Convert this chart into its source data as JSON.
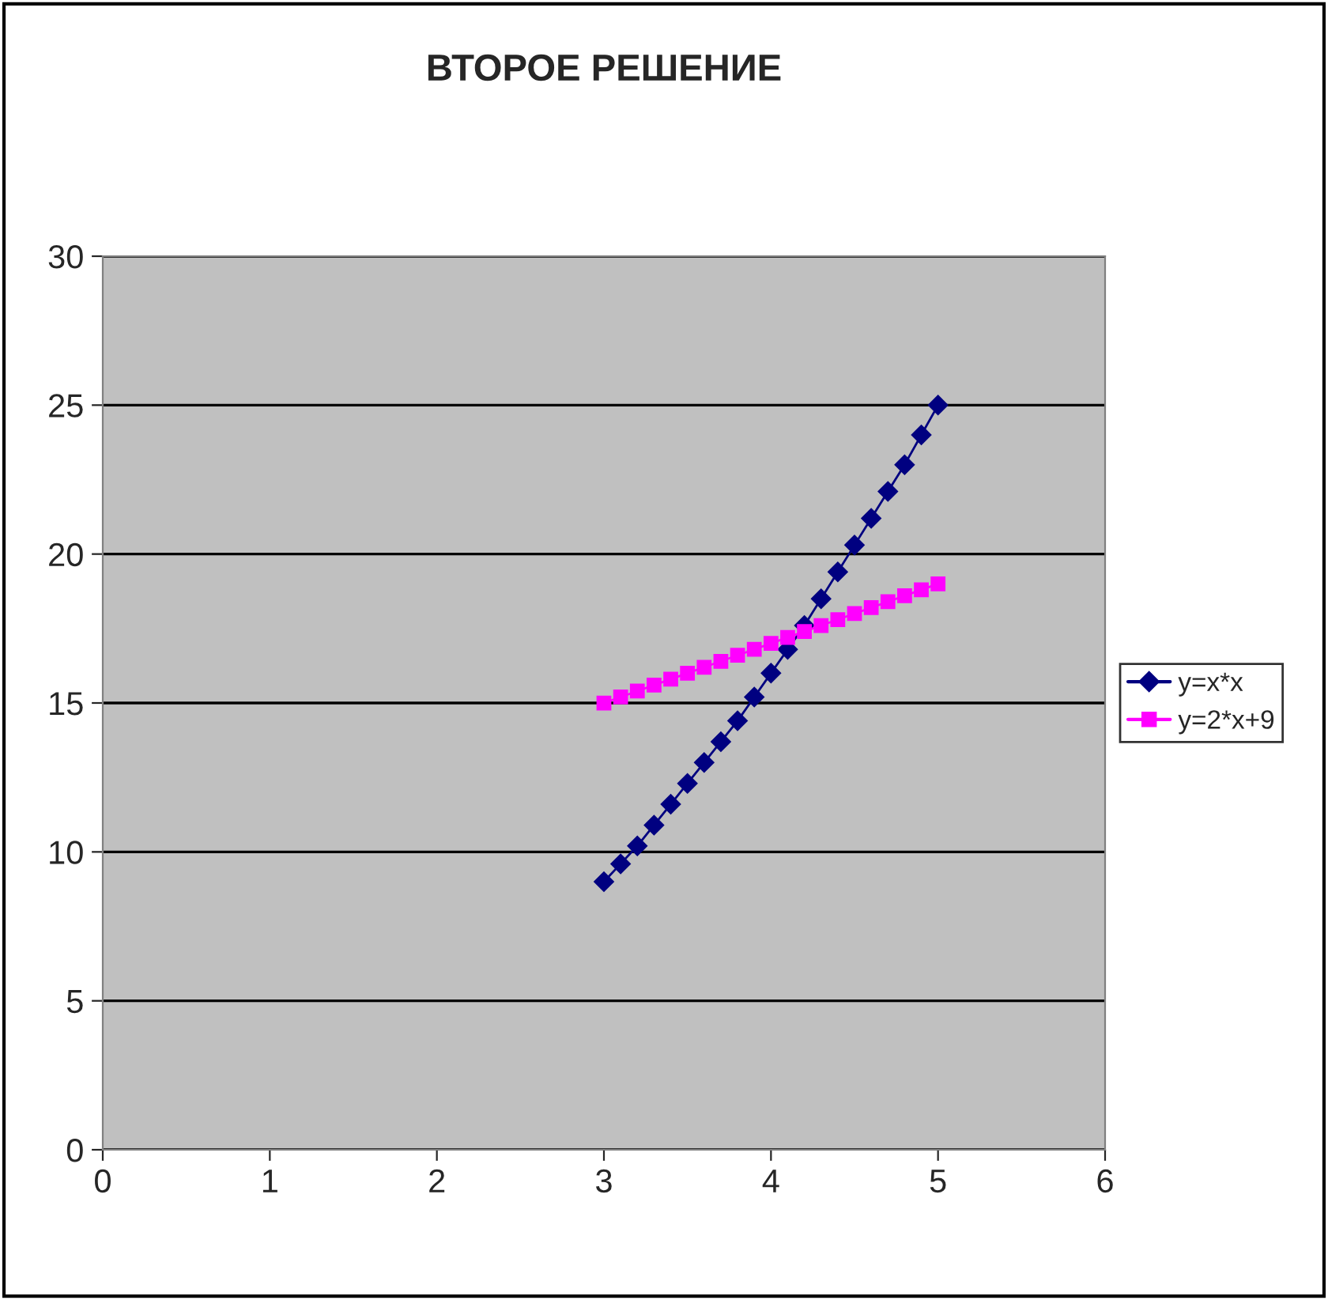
{
  "chart_data": {
    "type": "line",
    "title": "ВТОРОЕ РЕШЕНИЕ",
    "x": [
      3.0,
      3.1,
      3.2,
      3.3,
      3.4,
      3.5,
      3.6,
      3.7,
      3.8,
      3.9,
      4.0,
      4.1,
      4.2,
      4.3,
      4.4,
      4.5,
      4.6,
      4.7,
      4.8,
      4.9,
      5.0
    ],
    "series": [
      {
        "name": "y=x*x",
        "color": "#000080",
        "marker": "diamond",
        "values": [
          9.0,
          9.6,
          10.2,
          10.9,
          11.6,
          12.3,
          13.0,
          13.7,
          14.4,
          15.2,
          16.0,
          16.8,
          17.6,
          18.5,
          19.4,
          20.3,
          21.2,
          22.1,
          23.0,
          24.0,
          25.0
        ]
      },
      {
        "name": "y=2*x+9",
        "color": "#ff00ff",
        "marker": "square",
        "values": [
          15.0,
          15.2,
          15.4,
          15.6,
          15.8,
          16.0,
          16.2,
          16.4,
          16.6,
          16.8,
          17.0,
          17.2,
          17.4,
          17.6,
          17.8,
          18.0,
          18.2,
          18.4,
          18.6,
          18.8,
          19.0
        ]
      }
    ],
    "xlim": [
      0,
      6
    ],
    "xticks": [
      0,
      1,
      2,
      3,
      4,
      5,
      6
    ],
    "ylim": [
      0,
      30
    ],
    "yticks": [
      0,
      5,
      10,
      15,
      20,
      25,
      30
    ],
    "grid": "y",
    "legend": "right",
    "line_style": "solid"
  }
}
